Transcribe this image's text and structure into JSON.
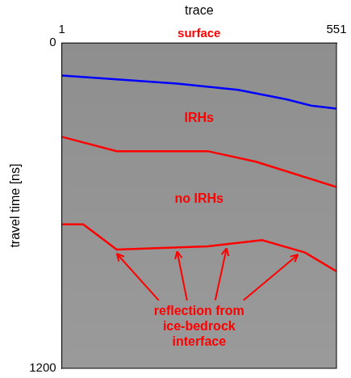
{
  "chart_data": {
    "type": "line",
    "x_label": "trace",
    "y_label": "travel time [ns]",
    "xlim": [
      1,
      551
    ],
    "xticks": [
      1,
      551
    ],
    "ylim": [
      0,
      1200
    ],
    "yticks": [
      0,
      1200
    ],
    "grid": false,
    "series": [
      {
        "color": "#0000ff",
        "x": [
          1,
          111,
          232,
          354,
          451,
          500,
          551
        ],
        "values": [
          120,
          134,
          150,
          173,
          208,
          231,
          242
        ]
      },
      {
        "color": "#ff0000",
        "x": [
          1,
          111,
          293,
          390,
          551
        ],
        "values": [
          346,
          399,
          399,
          438,
          531
        ]
      },
      {
        "color": "#ff0000",
        "x": [
          1,
          44,
          111,
          293,
          402,
          488,
          551
        ],
        "values": [
          669,
          669,
          762,
          750,
          727,
          773,
          842
        ]
      }
    ],
    "annotations": [
      {
        "text": "surface",
        "color": "#ff0000"
      },
      {
        "text": "IRHs",
        "color": "#ff0000"
      },
      {
        "text": "no IRHs",
        "color": "#ff0000"
      },
      {
        "text": "reflection from ice-bedrock interface",
        "color": "#ff0000"
      }
    ]
  }
}
